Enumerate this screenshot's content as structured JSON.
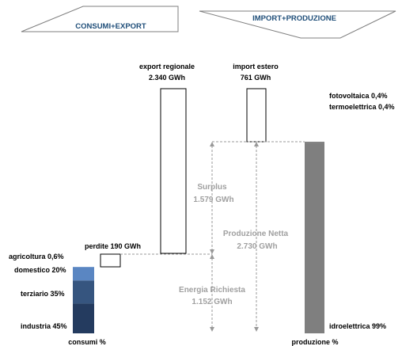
{
  "header": {
    "left_label": "CONSUMI+EXPORT",
    "right_label": "IMPORT+PRODUZIONE"
  },
  "flows": {
    "export_label": "export regionale",
    "export_value": "2.340 GWh",
    "import_label": "import estero",
    "import_value": "761 GWh",
    "perdite_label": "perdite 190 GWh",
    "surplus_label": "Surplus",
    "surplus_value": "1.579 GWh",
    "produzione_netta_label": "Produzione Netta",
    "produzione_netta_value": "2.730 GWh",
    "energia_richiesta_label": "Energia Richiesta",
    "energia_richiesta_value": "1.152 GWh"
  },
  "consumi": {
    "axis_label": "consumi %",
    "segments": [
      {
        "label": "industria 45%",
        "share": 45,
        "color": "#243b5f"
      },
      {
        "label": "terziario 35%",
        "share": 35,
        "color": "#36557f"
      },
      {
        "label": "domestico 20%",
        "share": 20,
        "color": "#5a86c2"
      },
      {
        "label": "agricoltura 0,6%",
        "share": 0.6,
        "color": "#9ab6de"
      }
    ]
  },
  "produzione": {
    "axis_label": "produzione %",
    "segments": [
      {
        "label": "idroelettrica 99%",
        "share": 99,
        "color": "#7f7f7f"
      },
      {
        "label": "termoelettrica 0,4%",
        "share": 0.4,
        "color": "#7f7f7f"
      },
      {
        "label": "fotovoltaica 0,4%",
        "share": 0.4,
        "color": "#7f7f7f"
      }
    ]
  },
  "colors": {
    "arrow_stroke": "#7f7f7f",
    "label_grey": "#a0a0a0",
    "dashed": "#999999",
    "text": "#000000",
    "header_text": "#1f4e79"
  }
}
